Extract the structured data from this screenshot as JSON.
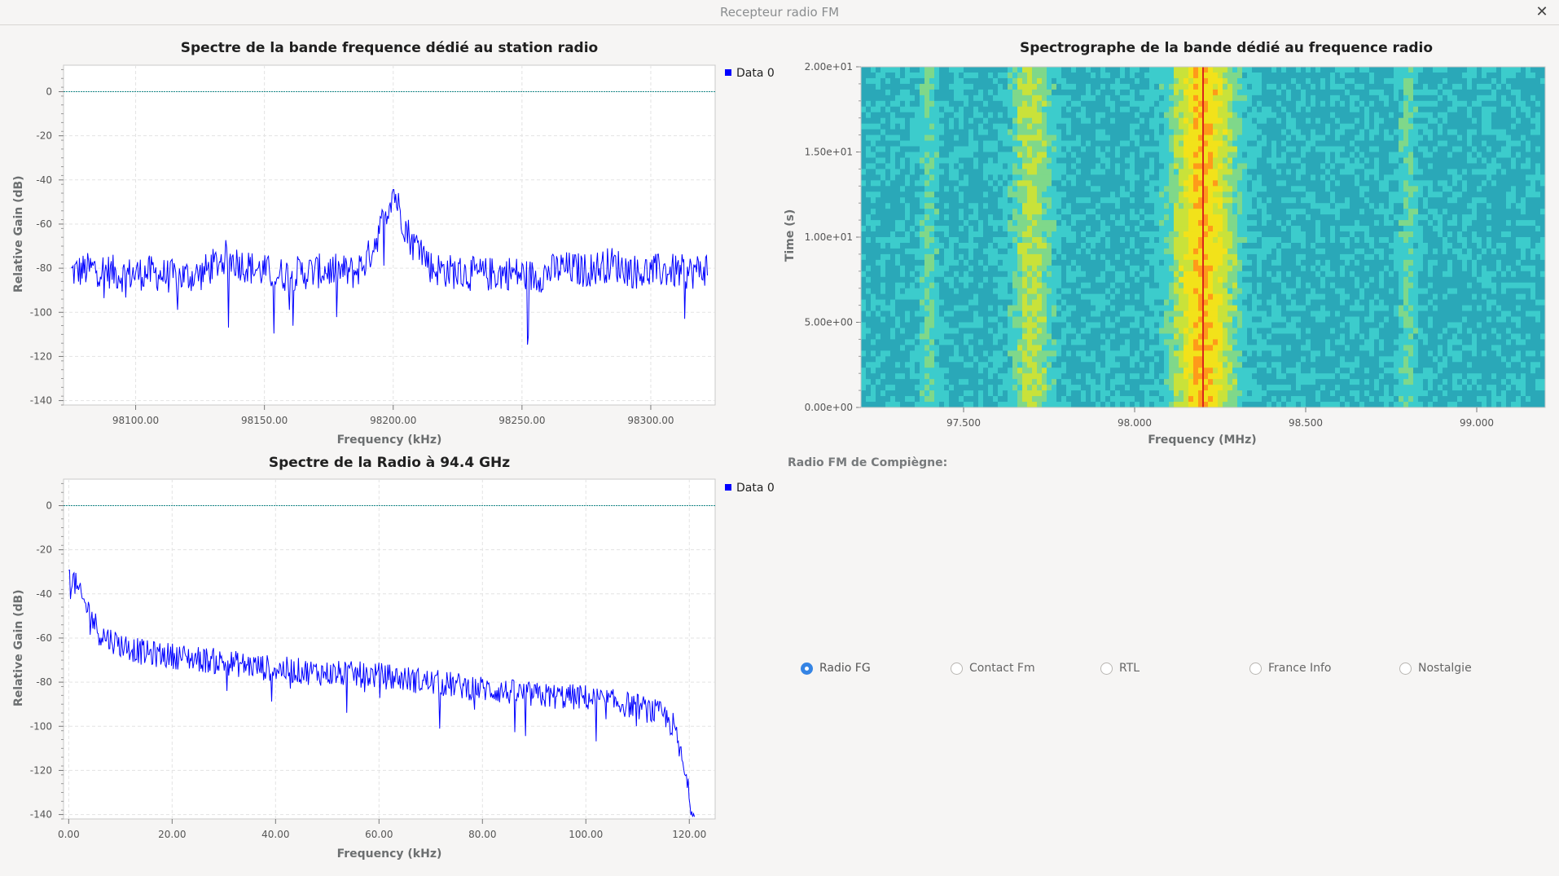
{
  "window": {
    "title": "Recepteur radio FM"
  },
  "plots": {
    "spectrum1": {
      "title": "Spectre de la bande frequence dédié au station radio",
      "ylabel": "Relative Gain (dB)",
      "xlabel": "Frequency (kHz)",
      "legend": "Data 0",
      "xticks": [
        "98100.00",
        "98150.00",
        "98200.00",
        "98250.00",
        "98300.00"
      ],
      "yticks": [
        "0",
        "-20",
        "-40",
        "-60",
        "-80",
        "-100",
        "-120",
        "-140"
      ]
    },
    "spectrogram": {
      "title": "Spectrographe de la bande dédié au frequence radio",
      "ylabel": "Time (s)",
      "xlabel": "Frequency (MHz)",
      "xticks": [
        "97.500",
        "98.000",
        "98.500",
        "99.000"
      ],
      "yticks": [
        "2.00e+01",
        "1.50e+01",
        "1.00e+01",
        "5.00e+00",
        "0.00e+00"
      ]
    },
    "spectrum2": {
      "title": "Spectre de la Radio à 94.4 GHz",
      "ylabel": "Relative Gain (dB)",
      "xlabel": "Frequency (kHz)",
      "legend": "Data 0",
      "xticks": [
        "0.00",
        "20.00",
        "40.00",
        "60.00",
        "80.00",
        "100.00",
        "120.00"
      ],
      "yticks": [
        "0",
        "-20",
        "-40",
        "-60",
        "-80",
        "-100",
        "-120",
        "-140"
      ]
    }
  },
  "stations": {
    "label": "Radio FM de Compiègne:",
    "options": [
      "Radio FG",
      "Contact Fm",
      "RTL",
      "France Info",
      "Nostalgie"
    ],
    "selected": "Radio FG"
  },
  "colors": {
    "trace": "#0000ff",
    "reference_line": "#1a8a8a",
    "accent": "#3584e4"
  },
  "chart_data": [
    {
      "type": "line",
      "title": "Spectre de la bande frequence dédié au station radio",
      "xlabel": "Frequency (kHz)",
      "ylabel": "Relative Gain (dB)",
      "xlim": [
        98072,
        98325
      ],
      "ylim": [
        -142,
        12
      ],
      "grid": true,
      "legend": "top-right",
      "series": [
        {
          "name": "Data 0",
          "x": [
            98075,
            98085,
            98095,
            98105,
            98115,
            98125,
            98135,
            98145,
            98155,
            98165,
            98175,
            98185,
            98190,
            98195,
            98198,
            98200,
            98202,
            98205,
            98208,
            98210,
            98212,
            98215,
            98225,
            98235,
            98245,
            98255,
            98265,
            98275,
            98285,
            98295,
            98305,
            98315,
            98322
          ],
          "y": [
            -82,
            -80,
            -83,
            -82,
            -84,
            -83,
            -75,
            -80,
            -83,
            -82,
            -81,
            -82,
            -76,
            -62,
            -52,
            -44,
            -52,
            -62,
            -70,
            -68,
            -74,
            -80,
            -82,
            -83,
            -82,
            -84,
            -80,
            -81,
            -78,
            -82,
            -81,
            -82,
            -80
          ]
        }
      ]
    },
    {
      "type": "heatmap",
      "title": "Spectrographe de la bande dédié au frequence radio",
      "xlabel": "Frequency (MHz)",
      "ylabel": "Time (s)",
      "xlim": [
        97.2,
        99.2
      ],
      "ylim": [
        0,
        20
      ],
      "bands": [
        {
          "center_mhz": 97.4,
          "level": "weak"
        },
        {
          "center_mhz": 97.7,
          "level": "medium"
        },
        {
          "center_mhz": 98.2,
          "level": "strong"
        },
        {
          "center_mhz": 98.8,
          "level": "weak"
        }
      ]
    },
    {
      "type": "line",
      "title": "Spectre de la Radio à 94.4 GHz",
      "xlabel": "Frequency (kHz)",
      "ylabel": "Relative Gain (dB)",
      "xlim": [
        -1,
        125
      ],
      "ylim": [
        -142,
        12
      ],
      "grid": true,
      "legend": "top-right",
      "series": [
        {
          "name": "Data 0",
          "x": [
            0,
            1,
            2,
            4,
            6,
            10,
            15,
            20,
            30,
            40,
            50,
            60,
            70,
            80,
            90,
            100,
            110,
            115,
            117,
            118,
            119,
            120,
            121
          ],
          "y": [
            -32,
            -34,
            -40,
            -48,
            -58,
            -63,
            -67,
            -68,
            -71,
            -74,
            -76,
            -77,
            -80,
            -83,
            -86,
            -87,
            -91,
            -95,
            -100,
            -110,
            -120,
            -132,
            -140
          ]
        }
      ]
    }
  ]
}
